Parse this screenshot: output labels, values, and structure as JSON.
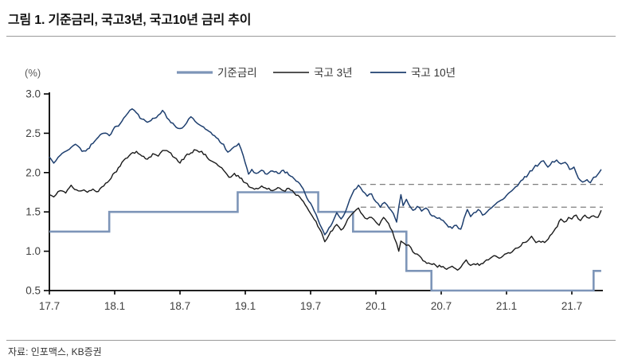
{
  "header": {
    "title": "그림 1. 기준금리, 국고3년, 국고10년 금리 추이"
  },
  "footer": {
    "source": "자료: 인포맥스, KB증권"
  },
  "chart_data": {
    "type": "line",
    "title": "기준금리, 국고3년, 국고10년 금리 추이",
    "unit_label": "(%)",
    "grid": false,
    "legend_position": "top-center",
    "legend": [
      {
        "label": "기준금리",
        "color": "#7d95b8",
        "width": 2.6
      },
      {
        "label": "국고 3년",
        "color": "#1a1a1a",
        "width": 1.4
      },
      {
        "label": "국고 10년",
        "color": "#1e3f6f",
        "width": 1.5
      }
    ],
    "x_axis": {
      "description": "months, tick labels are YY.M from 2017-07 to 2021-07",
      "range_m": [
        0,
        50.8
      ],
      "ticks": [
        {
          "label": "17.7",
          "m": 0
        },
        {
          "label": "18.1",
          "m": 6
        },
        {
          "label": "18.7",
          "m": 12
        },
        {
          "label": "19.1",
          "m": 18
        },
        {
          "label": "19.7",
          "m": 24
        },
        {
          "label": "20.1",
          "m": 30
        },
        {
          "label": "20.7",
          "m": 36
        },
        {
          "label": "21.1",
          "m": 42
        },
        {
          "label": "21.7",
          "m": 48
        }
      ]
    },
    "y_axis": {
      "min": 0.5,
      "max": 3.0,
      "step": 0.5,
      "tick_labels": [
        "0.5",
        "1.0",
        "1.5",
        "2.0",
        "2.5",
        "3.0"
      ]
    },
    "reference_lines": [
      {
        "value": 1.85,
        "from_m": 28.6,
        "style": "dashed",
        "color": "#7f7f7f"
      },
      {
        "value": 1.56,
        "from_m": 28.6,
        "style": "dashed",
        "color": "#7f7f7f"
      }
    ],
    "series": {
      "base_rate": {
        "name": "기준금리",
        "type": "step",
        "end_m": 50.7,
        "steps": [
          [
            0,
            1.25
          ],
          [
            5.5,
            1.5
          ],
          [
            17.3,
            1.75
          ],
          [
            24.7,
            1.5
          ],
          [
            27.9,
            1.25
          ],
          [
            32.8,
            0.75
          ],
          [
            35.1,
            0.5
          ],
          [
            50.0,
            0.75
          ]
        ]
      },
      "ktb3": {
        "name": "국고 3년",
        "type": "line",
        "points": [
          [
            0,
            1.72
          ],
          [
            0.4,
            1.69
          ],
          [
            1,
            1.77
          ],
          [
            1.5,
            1.74
          ],
          [
            2,
            1.84
          ],
          [
            2.5,
            1.78
          ],
          [
            3,
            1.77
          ],
          [
            3.5,
            1.75
          ],
          [
            4,
            1.79
          ],
          [
            4.5,
            1.76
          ],
          [
            5,
            1.83
          ],
          [
            5.5,
            1.9
          ],
          [
            6,
            2.0
          ],
          [
            6.5,
            2.08
          ],
          [
            7,
            2.18
          ],
          [
            7.5,
            2.24
          ],
          [
            8,
            2.27
          ],
          [
            8.5,
            2.21
          ],
          [
            9,
            2.17
          ],
          [
            9.5,
            2.24
          ],
          [
            10,
            2.21
          ],
          [
            10.4,
            2.28
          ],
          [
            11,
            2.26
          ],
          [
            11.5,
            2.19
          ],
          [
            12,
            2.12
          ],
          [
            12.5,
            2.21
          ],
          [
            13,
            2.25
          ],
          [
            13.3,
            2.29
          ],
          [
            14,
            2.27
          ],
          [
            14.5,
            2.19
          ],
          [
            15,
            2.14
          ],
          [
            15.5,
            2.09
          ],
          [
            16,
            2.03
          ],
          [
            16.5,
            1.94
          ],
          [
            17,
            1.99
          ],
          [
            17.5,
            1.93
          ],
          [
            18,
            1.87
          ],
          [
            18.5,
            1.81
          ],
          [
            19,
            1.8
          ],
          [
            19.5,
            1.83
          ],
          [
            20,
            1.79
          ],
          [
            20.5,
            1.77
          ],
          [
            21,
            1.81
          ],
          [
            21.5,
            1.77
          ],
          [
            22,
            1.8
          ],
          [
            22.5,
            1.74
          ],
          [
            23,
            1.69
          ],
          [
            23.5,
            1.59
          ],
          [
            24,
            1.48
          ],
          [
            24.5,
            1.38
          ],
          [
            25,
            1.24
          ],
          [
            25.3,
            1.12
          ],
          [
            25.7,
            1.21
          ],
          [
            26,
            1.26
          ],
          [
            26.4,
            1.34
          ],
          [
            26.8,
            1.27
          ],
          [
            27.2,
            1.34
          ],
          [
            27.6,
            1.44
          ],
          [
            28,
            1.5
          ],
          [
            28.4,
            1.55
          ],
          [
            28.8,
            1.46
          ],
          [
            29.2,
            1.41
          ],
          [
            29.6,
            1.43
          ],
          [
            30,
            1.37
          ],
          [
            30.3,
            1.33
          ],
          [
            30.7,
            1.43
          ],
          [
            31,
            1.38
          ],
          [
            31.5,
            1.26
          ],
          [
            31.9,
            1.1
          ],
          [
            32.1,
            1.0
          ],
          [
            32.3,
            1.13
          ],
          [
            32.6,
            1.1
          ],
          [
            33,
            1.08
          ],
          [
            33.4,
            0.99
          ],
          [
            34,
            0.94
          ],
          [
            34.5,
            0.87
          ],
          [
            35,
            0.84
          ],
          [
            35.5,
            0.82
          ],
          [
            36,
            0.8
          ],
          [
            36.5,
            0.77
          ],
          [
            37,
            0.81
          ],
          [
            37.5,
            0.76
          ],
          [
            38,
            0.84
          ],
          [
            38.3,
            0.89
          ],
          [
            38.7,
            0.82
          ],
          [
            39,
            0.84
          ],
          [
            39.5,
            0.82
          ],
          [
            40,
            0.87
          ],
          [
            40.5,
            0.91
          ],
          [
            41,
            0.94
          ],
          [
            41.5,
            0.92
          ],
          [
            42,
            0.97
          ],
          [
            42.5,
            0.99
          ],
          [
            43,
            1.04
          ],
          [
            43.5,
            1.11
          ],
          [
            44,
            1.14
          ],
          [
            44.3,
            1.19
          ],
          [
            44.7,
            1.11
          ],
          [
            45,
            1.13
          ],
          [
            45.5,
            1.11
          ],
          [
            46,
            1.2
          ],
          [
            46.5,
            1.29
          ],
          [
            47,
            1.41
          ],
          [
            47.3,
            1.37
          ],
          [
            47.7,
            1.43
          ],
          [
            48,
            1.41
          ],
          [
            48.4,
            1.46
          ],
          [
            48.8,
            1.39
          ],
          [
            49.2,
            1.46
          ],
          [
            49.6,
            1.42
          ],
          [
            50,
            1.45
          ],
          [
            50.4,
            1.43
          ],
          [
            50.7,
            1.52
          ]
        ]
      },
      "ktb10": {
        "name": "국고 10년",
        "type": "line",
        "points": [
          [
            0,
            2.2
          ],
          [
            0.4,
            2.12
          ],
          [
            1,
            2.22
          ],
          [
            1.5,
            2.27
          ],
          [
            2,
            2.32
          ],
          [
            2.4,
            2.36
          ],
          [
            3,
            2.27
          ],
          [
            3.5,
            2.3
          ],
          [
            4,
            2.37
          ],
          [
            4.5,
            2.45
          ],
          [
            5,
            2.5
          ],
          [
            5.5,
            2.47
          ],
          [
            6,
            2.58
          ],
          [
            6.5,
            2.62
          ],
          [
            7,
            2.72
          ],
          [
            7.6,
            2.81
          ],
          [
            8,
            2.76
          ],
          [
            8.5,
            2.68
          ],
          [
            9,
            2.64
          ],
          [
            9.5,
            2.69
          ],
          [
            10,
            2.73
          ],
          [
            10.4,
            2.79
          ],
          [
            11,
            2.67
          ],
          [
            11.5,
            2.6
          ],
          [
            12,
            2.56
          ],
          [
            12.6,
            2.63
          ],
          [
            13,
            2.71
          ],
          [
            13.4,
            2.65
          ],
          [
            14,
            2.59
          ],
          [
            14.5,
            2.54
          ],
          [
            15,
            2.48
          ],
          [
            15.5,
            2.43
          ],
          [
            16,
            2.36
          ],
          [
            16.4,
            2.26
          ],
          [
            17,
            2.33
          ],
          [
            17.4,
            2.37
          ],
          [
            17.8,
            2.22
          ],
          [
            18,
            2.12
          ],
          [
            18.3,
            1.98
          ],
          [
            18.6,
            2.04
          ],
          [
            19,
            1.99
          ],
          [
            19.5,
            2.03
          ],
          [
            20,
            1.98
          ],
          [
            20.5,
            2.02
          ],
          [
            21,
            1.99
          ],
          [
            21.5,
            2.03
          ],
          [
            22,
            1.97
          ],
          [
            22.5,
            1.92
          ],
          [
            23,
            1.86
          ],
          [
            23.5,
            1.73
          ],
          [
            24,
            1.61
          ],
          [
            24.5,
            1.47
          ],
          [
            25,
            1.3
          ],
          [
            25.3,
            1.21
          ],
          [
            25.7,
            1.3
          ],
          [
            26,
            1.36
          ],
          [
            26.4,
            1.49
          ],
          [
            26.8,
            1.41
          ],
          [
            27.2,
            1.5
          ],
          [
            27.6,
            1.66
          ],
          [
            28,
            1.78
          ],
          [
            28.4,
            1.84
          ],
          [
            28.8,
            1.76
          ],
          [
            29.2,
            1.7
          ],
          [
            29.6,
            1.73
          ],
          [
            30,
            1.63
          ],
          [
            30.4,
            1.56
          ],
          [
            30.8,
            1.62
          ],
          [
            31.2,
            1.55
          ],
          [
            31.6,
            1.48
          ],
          [
            31.9,
            1.37
          ],
          [
            32.1,
            1.56
          ],
          [
            32.3,
            1.72
          ],
          [
            32.5,
            1.58
          ],
          [
            32.8,
            1.66
          ],
          [
            33,
            1.6
          ],
          [
            33.4,
            1.52
          ],
          [
            33.8,
            1.57
          ],
          [
            34.2,
            1.51
          ],
          [
            34.6,
            1.55
          ],
          [
            35,
            1.47
          ],
          [
            35.5,
            1.43
          ],
          [
            36,
            1.4
          ],
          [
            36.5,
            1.34
          ],
          [
            37,
            1.29
          ],
          [
            37.4,
            1.33
          ],
          [
            37.8,
            1.28
          ],
          [
            38.1,
            1.42
          ],
          [
            38.4,
            1.53
          ],
          [
            38.7,
            1.44
          ],
          [
            39,
            1.49
          ],
          [
            39.4,
            1.53
          ],
          [
            39.8,
            1.46
          ],
          [
            40.2,
            1.5
          ],
          [
            40.6,
            1.55
          ],
          [
            41,
            1.6
          ],
          [
            41.5,
            1.65
          ],
          [
            42,
            1.71
          ],
          [
            42.5,
            1.77
          ],
          [
            43,
            1.83
          ],
          [
            43.5,
            1.91
          ],
          [
            44,
            1.98
          ],
          [
            44.5,
            2.06
          ],
          [
            45,
            2.11
          ],
          [
            45.4,
            2.15
          ],
          [
            45.8,
            2.07
          ],
          [
            46.2,
            2.14
          ],
          [
            46.6,
            2.16
          ],
          [
            47,
            2.11
          ],
          [
            47.4,
            2.13
          ],
          [
            47.8,
            2.04
          ],
          [
            48.2,
            2.07
          ],
          [
            48.6,
            1.93
          ],
          [
            49,
            1.88
          ],
          [
            49.4,
            1.91
          ],
          [
            49.7,
            1.87
          ],
          [
            50,
            1.94
          ],
          [
            50.4,
            1.98
          ],
          [
            50.7,
            2.04
          ]
        ]
      }
    }
  }
}
